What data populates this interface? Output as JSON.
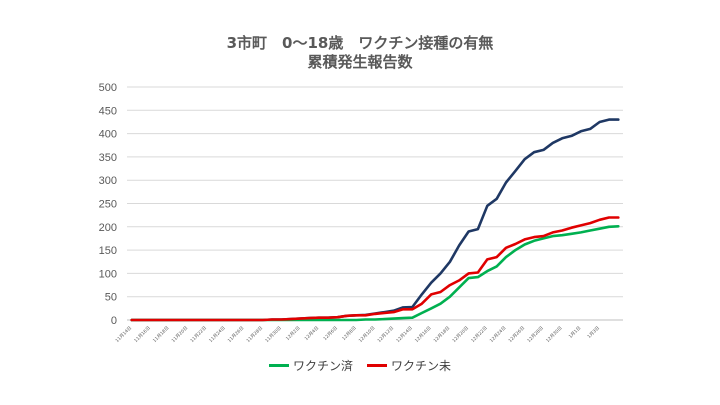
{
  "chart_data": {
    "type": "line",
    "title_line1": "3市町　0～18歳　ワクチン接種の有無",
    "title_line2": "累積発生報告数",
    "xlabel": "",
    "ylabel": "",
    "ylim": [
      0,
      500
    ],
    "yticks": [
      "0",
      "50",
      "100",
      "150",
      "200",
      "250",
      "300",
      "350",
      "400",
      "450",
      "500"
    ],
    "grid": true,
    "legend_position": "bottom",
    "categories": [
      "11月14日",
      "11月15日",
      "11月16日",
      "11月17日",
      "11月18日",
      "11月19日",
      "11月20日",
      "11月21日",
      "11月22日",
      "11月23日",
      "11月24日",
      "11月25日",
      "11月26日",
      "11月27日",
      "11月28日",
      "11月29日",
      "11月30日",
      "12月1日",
      "12月2日",
      "12月3日",
      "12月4日",
      "12月5日",
      "12月6日",
      "12月7日",
      "12月8日",
      "12月9日",
      "12月10日",
      "12月11日",
      "12月12日",
      "12月13日",
      "12月14日",
      "12月15日",
      "12月16日",
      "12月17日",
      "12月18日",
      "12月19日",
      "12月20日",
      "12月21日",
      "12月22日",
      "12月23日",
      "12月24日",
      "12月25日",
      "12月26日",
      "12月27日",
      "12月28日",
      "12月29日",
      "12月30日",
      "12月31日",
      "1月1日",
      "1月2日",
      "1月3日",
      "1月4日",
      "1月5日"
    ],
    "xtick_labels": [
      "11月14日",
      "11月16日",
      "11月18日",
      "11月20日",
      "11月22日",
      "11月24日",
      "11月26日",
      "11月28日",
      "11月30日",
      "12月2日",
      "12月4日",
      "12月6日",
      "12月8日",
      "12月10日",
      "12月12日",
      "12月14日",
      "12月16日",
      "12月18日",
      "12月20日",
      "12月22日",
      "12月24日",
      "12月26日",
      "12月28日",
      "12月30日",
      "1月1日",
      "1月3日"
    ],
    "series": [
      {
        "name": "",
        "color": "#1f3864",
        "values": [
          0,
          0,
          0,
          0,
          0,
          0,
          0,
          0,
          0,
          0,
          0,
          0,
          0,
          0,
          0,
          1,
          1,
          2,
          3,
          4,
          5,
          5,
          6,
          9,
          10,
          11,
          14,
          17,
          20,
          27,
          28,
          55,
          80,
          100,
          125,
          160,
          190,
          195,
          245,
          260,
          295,
          320,
          345,
          360,
          365,
          380,
          390,
          395,
          405,
          410,
          425,
          430,
          430
        ]
      },
      {
        "name": "ワクチン済",
        "color": "#00b050",
        "values": [
          0,
          0,
          0,
          0,
          0,
          0,
          0,
          0,
          0,
          0,
          0,
          0,
          0,
          0,
          0,
          0,
          0,
          0,
          0,
          0,
          0,
          0,
          0,
          0,
          0,
          1,
          1,
          2,
          3,
          4,
          5,
          15,
          25,
          35,
          50,
          70,
          90,
          92,
          105,
          115,
          135,
          150,
          162,
          170,
          175,
          180,
          182,
          185,
          188,
          192,
          196,
          200,
          201
        ]
      },
      {
        "name": "ワクチン未",
        "color": "#e00000",
        "values": [
          0,
          0,
          0,
          0,
          0,
          0,
          0,
          0,
          0,
          0,
          0,
          0,
          0,
          0,
          0,
          1,
          1,
          2,
          3,
          4,
          5,
          5,
          6,
          9,
          10,
          10,
          13,
          15,
          17,
          23,
          23,
          35,
          55,
          60,
          75,
          85,
          100,
          102,
          130,
          135,
          155,
          163,
          173,
          178,
          180,
          188,
          192,
          198,
          203,
          208,
          215,
          220,
          220
        ]
      }
    ]
  }
}
